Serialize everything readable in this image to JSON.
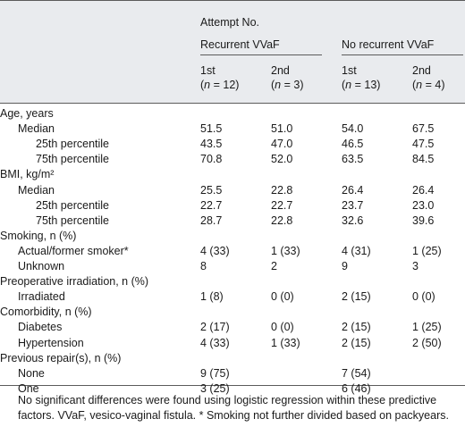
{
  "header": {
    "attempt": "Attempt No.",
    "groups": [
      "Recurrent VVaF",
      "No recurrent VVaF"
    ],
    "cols": [
      {
        "label": "1st",
        "n_prefix": "(",
        "n_italic": "n",
        "n_suffix": " = 12)"
      },
      {
        "label": "2nd",
        "n_prefix": "(",
        "n_italic": "n",
        "n_suffix": " = 3)"
      },
      {
        "label": "1st",
        "n_prefix": "(",
        "n_italic": "n",
        "n_suffix": " = 13)"
      },
      {
        "label": "2nd",
        "n_prefix": "(",
        "n_italic": "n",
        "n_suffix": " = 4)"
      }
    ]
  },
  "rows": [
    {
      "label": "Age, years",
      "level": 0,
      "values": []
    },
    {
      "label": "Median",
      "level": 1,
      "values": [
        "51.5",
        "51.0",
        "54.0",
        "67.5"
      ]
    },
    {
      "label": "25th percentile",
      "level": 2,
      "values": [
        "43.5",
        "47.0",
        "46.5",
        "47.5"
      ]
    },
    {
      "label": "75th percentile",
      "level": 2,
      "values": [
        "70.8",
        "52.0",
        "63.5",
        "84.5"
      ]
    },
    {
      "label": "BMI, kg/m²",
      "level": 0,
      "values": []
    },
    {
      "label": "Median",
      "level": 1,
      "values": [
        "25.5",
        "22.8",
        "26.4",
        "26.4"
      ]
    },
    {
      "label": "25th percentile",
      "level": 2,
      "values": [
        "22.7",
        "22.7",
        "23.7",
        "23.0"
      ]
    },
    {
      "label": "75th percentile",
      "level": 2,
      "values": [
        "28.7",
        "22.8",
        "32.6",
        "39.6"
      ]
    },
    {
      "label": "Smoking, n (%)",
      "level": 0,
      "values": []
    },
    {
      "label": "Actual/former smoker*",
      "level": 1,
      "values": [
        "4 (33)",
        "1 (33)",
        "4 (31)",
        "1 (25)"
      ]
    },
    {
      "label": "Unknown",
      "level": 1,
      "values": [
        "8",
        "2",
        "9",
        "3"
      ]
    },
    {
      "label": "Preoperative irradiation, n (%)",
      "level": 0,
      "values": []
    },
    {
      "label": "Irradiated",
      "level": 1,
      "values": [
        "1 (8)",
        "0 (0)",
        "2 (15)",
        "0 (0)"
      ]
    },
    {
      "label": "Comorbidity, n (%)",
      "level": 0,
      "values": []
    },
    {
      "label": "Diabetes",
      "level": 1,
      "values": [
        "2 (17)",
        "0 (0)",
        "2 (15)",
        "1 (25)"
      ]
    },
    {
      "label": "Hypertension",
      "level": 1,
      "values": [
        "4 (33)",
        "1 (33)",
        "2 (15)",
        "2 (50)"
      ]
    },
    {
      "label": "Previous repair(s), n (%)",
      "level": 0,
      "values": []
    },
    {
      "label": "None",
      "level": 1,
      "values": [
        "9 (75)",
        "",
        "7 (54)",
        ""
      ]
    },
    {
      "label": "One",
      "level": 1,
      "values": [
        "3 (25)",
        "",
        "6 (46)",
        ""
      ]
    }
  ],
  "footnote": "No significant differences were found using logistic regression within these predictive factors. VVaF, vesico-vaginal fistula. * Smoking not further divided based on packyears."
}
